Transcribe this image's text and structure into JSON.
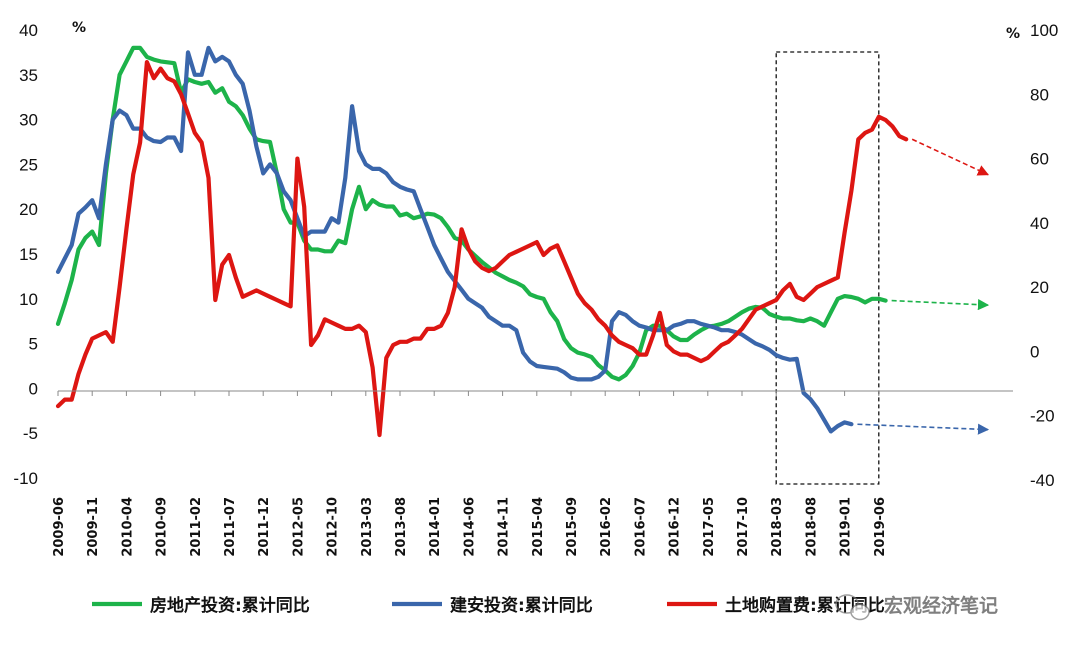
{
  "chart_data": {
    "type": "line",
    "xlabel": "",
    "ylabel_left": "%",
    "ylabel_right": "%",
    "ylim_left": [
      -10,
      40
    ],
    "ylim_right": [
      -40,
      100
    ],
    "left_ticks": [
      -10,
      -5,
      0,
      5,
      10,
      15,
      20,
      25,
      30,
      35,
      40
    ],
    "right_ticks": [
      -40,
      -20,
      0,
      20,
      40,
      60,
      80,
      100
    ],
    "x_tick_labels": [
      "2009-06",
      "2009-11",
      "2010-04",
      "2010-09",
      "2011-02",
      "2011-07",
      "2011-12",
      "2012-05",
      "2012-10",
      "2013-03",
      "2013-08",
      "2014-01",
      "2014-06",
      "2014-11",
      "2015-04",
      "2015-09",
      "2016-02",
      "2016-07",
      "2016-12",
      "2017-05",
      "2017-10",
      "2018-03",
      "2018-08",
      "2019-01",
      "2019-06"
    ],
    "x_start": "2009-06",
    "grid": false,
    "legend_position": "bottom",
    "highlight_box": [
      "2018-03",
      "2019-06"
    ],
    "series": [
      {
        "name": "房地产投资:累计同比",
        "axis": "left",
        "color": "#1db34a",
        "values": [
          7.2,
          9.5,
          12.1,
          15.5,
          16.8,
          17.5,
          16.0,
          24,
          30,
          35,
          36.5,
          38,
          38,
          37,
          36.7,
          36.5,
          36.4,
          36.3,
          33,
          34.5,
          34.2,
          34,
          34.2,
          33,
          33.5,
          32,
          31.5,
          30.5,
          29,
          27.8,
          27.6,
          27.5,
          24,
          20,
          18.5,
          18.5,
          16.5,
          15.5,
          15.5,
          15.3,
          15.3,
          16.5,
          16.2,
          20,
          22.5,
          20,
          21,
          20.5,
          20.3,
          20.3,
          19.3,
          19.5,
          19,
          19.2,
          19.5,
          19.4,
          19,
          18,
          16.8,
          16.5,
          15.5,
          14.8,
          14.1,
          13.5,
          12.9,
          12.5,
          12.1,
          11.8,
          11.4,
          10.5,
          10.2,
          10,
          8.5,
          7.5,
          5.5,
          4.5,
          4,
          3.8,
          3.5,
          2.6,
          2,
          1.3,
          1,
          1.5,
          2.5,
          4,
          6.5,
          7,
          7,
          6.5,
          5.8,
          5.4,
          5.4,
          6,
          6.5,
          6.9,
          7,
          7.2,
          7.5,
          8,
          8.5,
          8.9,
          9.1,
          9,
          8.3,
          8,
          7.8,
          7.8,
          7.6,
          7.5,
          7.8,
          7.5,
          7.0,
          8.5,
          10.0,
          10.3,
          10.2,
          10.0,
          9.6,
          10.0,
          10.0,
          9.8
        ]
      },
      {
        "name": "建安投资:累计同比",
        "axis": "left",
        "color": "#3a66ab",
        "values": [
          13,
          14.5,
          16,
          19.5,
          20.2,
          21,
          19,
          25,
          30,
          31,
          30.5,
          29,
          29,
          28,
          27.6,
          27.5,
          28,
          28,
          26.5,
          37.5,
          35,
          35,
          38,
          36.5,
          37,
          36.5,
          35,
          34,
          31,
          27,
          24,
          25,
          24,
          22,
          21,
          19,
          17,
          17.5,
          17.5,
          17.5,
          19,
          18.5,
          23.5,
          31.5,
          26.5,
          25,
          24.5,
          24.5,
          24,
          23,
          22.5,
          22.2,
          22,
          20,
          18,
          16,
          14.5,
          13,
          12,
          11,
          10,
          9.5,
          9,
          8,
          7.5,
          7,
          7,
          6.5,
          4,
          3,
          2.5,
          2.4,
          2.3,
          2.2,
          1.8,
          1.2,
          1,
          1,
          1,
          1.3,
          2,
          7.5,
          8.5,
          8.2,
          7.5,
          7,
          6.8,
          6.5,
          6.5,
          6.5,
          7,
          7.2,
          7.5,
          7.5,
          7.2,
          7,
          6.8,
          6.5,
          6.5,
          6.3,
          6,
          5.5,
          5,
          4.7,
          4.3,
          3.7,
          3.4,
          3.2,
          3.3,
          -0.5,
          -1.2,
          -2.2,
          -3.5,
          -4.8,
          -4.2,
          -3.8,
          -4.0
        ]
      },
      {
        "name": "土地购置费:累计同比",
        "axis": "right",
        "color": "#dd1612",
        "values": [
          -17,
          -15,
          -15,
          -7,
          -1,
          4,
          5,
          6,
          3,
          20,
          38,
          55,
          65,
          90,
          85,
          88,
          85,
          84,
          80,
          74,
          68,
          65,
          54,
          16,
          27,
          30,
          23,
          17,
          18,
          19,
          18,
          17,
          16,
          15,
          14,
          60,
          45,
          2,
          5,
          10,
          9,
          8,
          7,
          7,
          8,
          6,
          -5,
          -26,
          -2,
          2,
          3,
          3,
          4,
          4,
          7,
          7,
          8,
          12,
          20,
          38,
          32,
          28,
          26,
          25,
          26,
          28,
          30,
          31,
          32,
          33,
          34,
          30,
          32,
          33,
          28,
          23,
          18,
          15,
          13,
          10,
          8,
          5,
          3,
          2,
          1,
          -1,
          -1,
          5,
          12,
          2,
          0,
          -1,
          -1,
          -2,
          -3,
          -2,
          0,
          2,
          3,
          5,
          7,
          10,
          13,
          14,
          15,
          16,
          19,
          21,
          17,
          16,
          18,
          20,
          21,
          22,
          23,
          37,
          50,
          66,
          68,
          69,
          73,
          72,
          70,
          67,
          66
        ]
      }
    ],
    "trend_arrows": [
      {
        "series": "土地购置费:累计同比",
        "axis": "right",
        "to_value": 55
      },
      {
        "series": "房地产投资:累计同比",
        "axis": "left",
        "to_value": 9.3
      },
      {
        "series": "建安投资:累计同比",
        "axis": "left",
        "to_value": -4.6
      }
    ]
  },
  "legend": {
    "items": [
      {
        "label": "房地产投资:累计同比",
        "color": "#1db34a"
      },
      {
        "label": "建安投资:累计同比",
        "color": "#3a66ab"
      },
      {
        "label": "土地购置费:累计同比",
        "color": "#dd1612"
      }
    ]
  },
  "watermark": {
    "text": "宏观经济笔记",
    "icon": "wechat-icon"
  }
}
